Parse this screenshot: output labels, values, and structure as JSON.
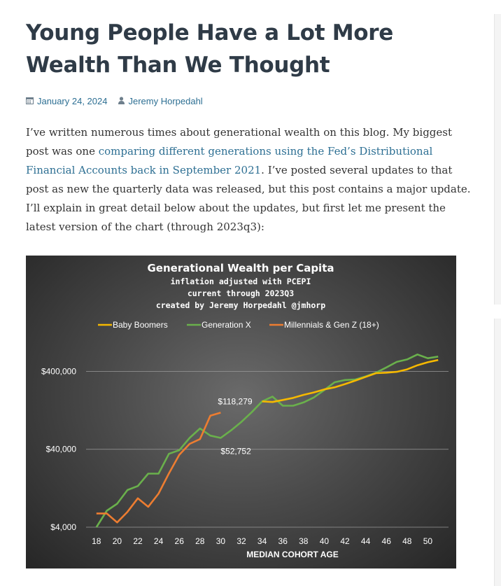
{
  "article": {
    "title": "Young People Have a Lot More Wealth Than We Thought",
    "date": "January 24, 2024",
    "author": "Jeremy Horpedahl",
    "para_1": "I’ve written numerous times about generational wealth on this blog. My biggest post was one ",
    "link_text": "comparing different generations using the Fed’s Distributional Financial Accounts back in September 2021",
    "para_2": ". I’ve posted several updates to that post as new the quarterly data was released, but this post contains a major update. I’ll explain in great detail below about the updates, but first let me present the latest version of the chart (through 2023q3):"
  },
  "icons": {
    "calendar": "calendar-icon",
    "user": "user-icon"
  },
  "colors": {
    "boomers": "#f5b800",
    "genx": "#6ab04c",
    "millennials": "#ed7d31",
    "link": "#2d6f93"
  },
  "chart_data": {
    "type": "line",
    "title": "Generational Wealth per Capita",
    "subtitle_lines": [
      "inflation adjusted with PCEPI",
      "current through 2023Q3",
      "created by Jeremy Horpedahl @jmhorp"
    ],
    "xlabel": "MEDIAN COHORT AGE",
    "ylabel": "",
    "xlim": [
      17,
      52
    ],
    "ylim": [
      4000,
      800000
    ],
    "yscale": "log",
    "x_ticks": [
      18,
      20,
      22,
      24,
      26,
      28,
      30,
      32,
      34,
      36,
      38,
      40,
      42,
      44,
      46,
      48,
      50
    ],
    "y_ticks": [
      4000,
      40000,
      400000
    ],
    "y_tick_labels": [
      "$4,000",
      "$40,000",
      "$400,000"
    ],
    "legend_position": "top",
    "grid": "horizontal",
    "series": [
      {
        "name": "Baby Boomers",
        "color": "#f5b800",
        "x": [
          34,
          35,
          36,
          37,
          38,
          39,
          40,
          41,
          42,
          43,
          44,
          45,
          46,
          47,
          48,
          49,
          50,
          51
        ],
        "y": [
          165000,
          162000,
          172000,
          183000,
          200000,
          215000,
          235000,
          250000,
          275000,
          305000,
          340000,
          380000,
          385000,
          395000,
          425000,
          480000,
          525000,
          560000
        ]
      },
      {
        "name": "Generation X",
        "color": "#6ab04c",
        "x": [
          18,
          19,
          20,
          21,
          22,
          23,
          24,
          25,
          26,
          27,
          28,
          29,
          30,
          31,
          32,
          33,
          34,
          35,
          36,
          37,
          38,
          39,
          40,
          41,
          42,
          43,
          44,
          45,
          46,
          47,
          48,
          49,
          50,
          51
        ],
        "y": [
          4000,
          6500,
          8000,
          12000,
          13500,
          19500,
          19500,
          35000,
          39000,
          56000,
          74000,
          60000,
          56000,
          70000,
          90000,
          120000,
          165000,
          190000,
          145000,
          145000,
          160000,
          185000,
          230000,
          290000,
          310000,
          315000,
          345000,
          385000,
          450000,
          530000,
          570000,
          660000,
          590000,
          620000
        ]
      },
      {
        "name": "Millennials & Gen Z (18+)",
        "color": "#ed7d31",
        "x": [
          18,
          19,
          20,
          21,
          22,
          23,
          24,
          25,
          26,
          27,
          28,
          29,
          30
        ],
        "y": [
          6000,
          6000,
          4600,
          6300,
          9400,
          7300,
          10800,
          19600,
          34000,
          47000,
          54000,
          108000,
          118279
        ]
      }
    ],
    "annotations": [
      {
        "text": "$118,279",
        "x": 30,
        "y": 118279
      },
      {
        "text": "$52,752",
        "x": 30,
        "y": 52752
      }
    ]
  }
}
